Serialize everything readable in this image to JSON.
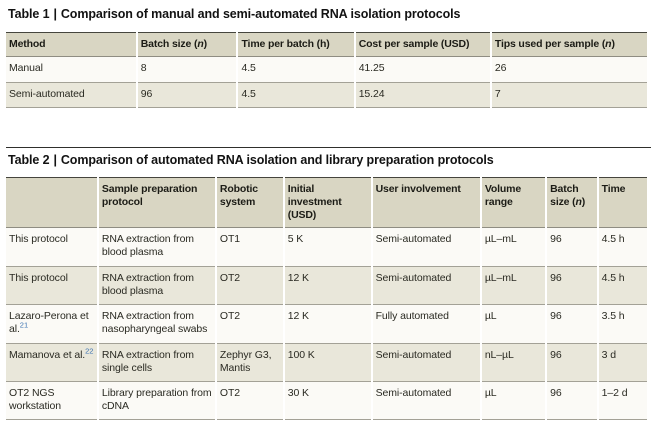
{
  "colors": {
    "header_bg": "#d9d6c3",
    "shaded_row_bg": "#e9e7da",
    "plain_row_bg": "#fbfaf6",
    "top_rule": "#45453d",
    "row_rule": "#a3a196",
    "citation_blue": "#3e74b3"
  },
  "table1": {
    "label": "Table 1",
    "separator": "|",
    "title": "Comparison of manual and semi-automated RNA isolation protocols",
    "headers": [
      {
        "pre": "Method"
      },
      {
        "pre": "Batch size (",
        "it": "n",
        "post": ")"
      },
      {
        "pre": "Time per batch (h)"
      },
      {
        "pre": "Cost per sample (USD)"
      },
      {
        "pre": "Tips used per sample (",
        "it": "n",
        "post": ")"
      }
    ],
    "rows": [
      {
        "label": "Manual",
        "ref": "",
        "cells": [
          "8",
          "4.5",
          "41.25",
          "26"
        ],
        "shaded": false
      },
      {
        "label": "Semi-automated",
        "ref": "",
        "cells": [
          "96",
          "4.5",
          "15.24",
          "7"
        ],
        "shaded": true
      }
    ]
  },
  "table2": {
    "label": "Table 2",
    "separator": "|",
    "title": "Comparison of automated RNA isolation and library preparation protocols",
    "headers": [
      {
        "pre": ""
      },
      {
        "pre": "Sample preparation protocol"
      },
      {
        "pre": "Robotic system"
      },
      {
        "pre": "Initial investment (USD)"
      },
      {
        "pre": "User involvement"
      },
      {
        "pre": "Volume range"
      },
      {
        "pre": "Batch size (",
        "it": "n",
        "post": ")"
      },
      {
        "pre": "Time"
      }
    ],
    "rows": [
      {
        "label": "This protocol",
        "ref": "",
        "cells": [
          "RNA extraction from blood plasma",
          "OT1",
          "5 K",
          "Semi-automated",
          "µL–mL",
          "96",
          "4.5 h"
        ],
        "shaded": false
      },
      {
        "label": "This protocol",
        "ref": "",
        "cells": [
          "RNA extraction from blood plasma",
          "OT2",
          "12 K",
          "Semi-automated",
          "µL–mL",
          "96",
          "4.5 h"
        ],
        "shaded": true
      },
      {
        "label": "Lazaro-Perona et al.",
        "ref": "21",
        "cells": [
          "RNA extraction from nasopharyngeal swabs",
          "OT2",
          "12 K",
          "Fully automated",
          "µL",
          "96",
          "3.5 h"
        ],
        "shaded": false
      },
      {
        "label": "Mamanova et al.",
        "ref": "22",
        "cells": [
          "RNA extraction from single cells",
          "Zephyr G3, Mantis",
          "100 K",
          "Semi-automated",
          "nL–µL",
          "96",
          "3 d"
        ],
        "shaded": true
      },
      {
        "label": "OT2 NGS workstation",
        "ref": "",
        "cells": [
          "Library preparation from cDNA",
          "OT2",
          "30 K",
          "Semi-automated",
          "µL",
          "96",
          "1–2 d"
        ],
        "shaded": false
      }
    ]
  }
}
